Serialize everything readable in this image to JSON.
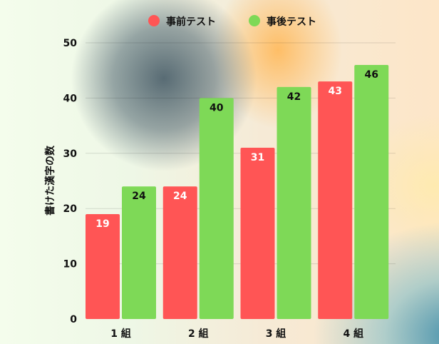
{
  "chart_data": {
    "type": "bar",
    "title": "",
    "xlabel": "",
    "ylabel": "書けた漢字の数",
    "categories": [
      "1 組",
      "2 組",
      "3 組",
      "4 組"
    ],
    "series": [
      {
        "name": "事前テスト",
        "values": [
          19,
          24,
          31,
          43
        ],
        "color": "#ff5555",
        "label_color": "#ffffff"
      },
      {
        "name": "事後テスト",
        "values": [
          24,
          40,
          42,
          46
        ],
        "color": "#7ed957",
        "label_color": "#111111"
      }
    ],
    "ylim": [
      0,
      50
    ],
    "yticks": [
      0,
      10,
      20,
      30,
      40,
      50
    ],
    "grid": true,
    "legend": "top-center",
    "data_labels": true
  }
}
